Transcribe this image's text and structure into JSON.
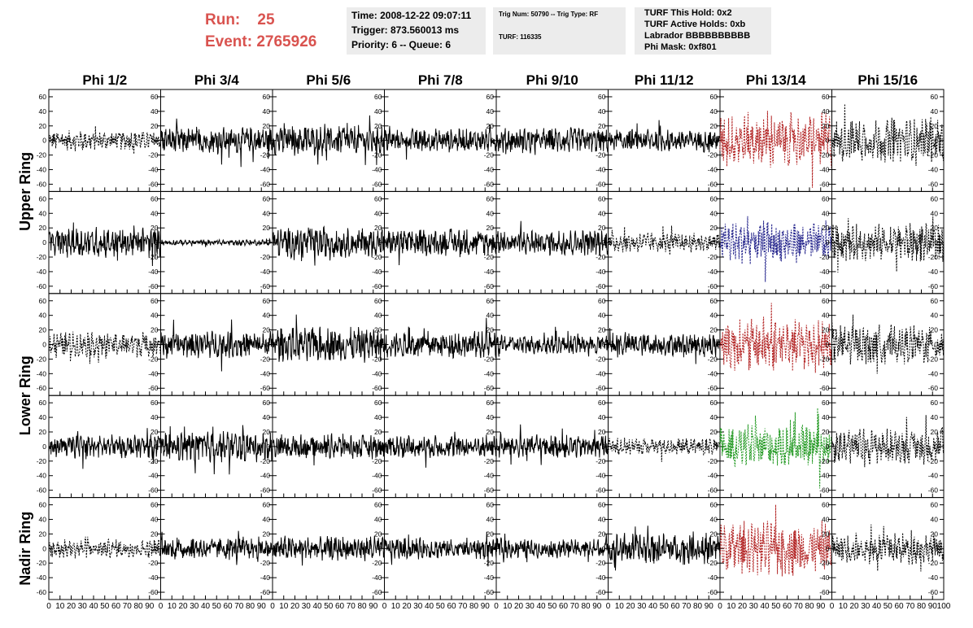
{
  "header": {
    "run_label": "Run:",
    "run_value": "25",
    "event_label": "Event:",
    "event_value": "2765926",
    "time": "Time: 2008-12-22 09:07:11",
    "trigger": "Trigger: 873.560013 ms",
    "priority": "Priority: 6 -- Queue: 6",
    "trig_num": "Trig Num: 50790 -- Trig Type: RF",
    "turf": "TURF: 116335",
    "turf_this_hold": "TURF This Hold: 0x2",
    "turf_active_holds": "TURF Active Holds: 0xb",
    "labrador": "Labrador BBBBBBBBBB",
    "phi_mask": "Phi Mask: 0xf801"
  },
  "chart_data": {
    "type": "line",
    "columns": [
      "Phi 1/2",
      "Phi 3/4",
      "Phi 5/6",
      "Phi 7/8",
      "Phi 9/10",
      "Phi 11/12",
      "Phi 13/14",
      "Phi 15/16"
    ],
    "ring_labels": [
      "Upper Ring",
      "Lower Ring",
      "Nadir Ring"
    ],
    "rows": 5,
    "xlim": [
      0,
      100
    ],
    "ylim": [
      -70,
      70
    ],
    "xticks": [
      0,
      10,
      20,
      30,
      40,
      50,
      60,
      70,
      80,
      90,
      100
    ],
    "yticks": [
      -60,
      -40,
      -20,
      0,
      20,
      40,
      60
    ],
    "x_tick_label_text": [
      "0",
      "10",
      "20",
      "30",
      "40",
      "50",
      "60",
      "70",
      "80",
      "90",
      "100"
    ],
    "panel_styles": [
      [
        "dashed",
        "solid",
        "solid",
        "solid",
        "solid",
        "solid",
        "dashed",
        "dashed"
      ],
      [
        "solid",
        "solid",
        "solid",
        "solid",
        "solid",
        "dashed",
        "dashed",
        "dashed"
      ],
      [
        "dashed",
        "solid",
        "solid",
        "solid",
        "solid",
        "solid",
        "dashed",
        "dashed"
      ],
      [
        "solid",
        "solid",
        "solid",
        "solid",
        "solid",
        "dashed",
        "dashed",
        "dashed"
      ],
      [
        "dashed",
        "solid",
        "solid",
        "solid",
        "solid",
        "solid",
        "dashed",
        "dashed"
      ]
    ],
    "panel_colors": [
      [
        "#000000",
        "#000000",
        "#000000",
        "#000000",
        "#000000",
        "#000000",
        "#b22222",
        "#000000"
      ],
      [
        "#000000",
        "#000000",
        "#000000",
        "#000000",
        "#000000",
        "#000000",
        "#22228b",
        "#000000"
      ],
      [
        "#000000",
        "#000000",
        "#000000",
        "#000000",
        "#000000",
        "#000000",
        "#b22222",
        "#000000"
      ],
      [
        "#000000",
        "#000000",
        "#000000",
        "#000000",
        "#000000",
        "#000000",
        "#229922",
        "#000000"
      ],
      [
        "#000000",
        "#000000",
        "#000000",
        "#000000",
        "#000000",
        "#000000",
        "#b22222",
        "#000000"
      ]
    ],
    "panel_amplitudes": [
      [
        10,
        14,
        16,
        12,
        13,
        12,
        28,
        22
      ],
      [
        16,
        3,
        16,
        14,
        14,
        10,
        22,
        20
      ],
      [
        13,
        14,
        18,
        14,
        10,
        12,
        28,
        20
      ],
      [
        12,
        16,
        13,
        12,
        12,
        9,
        22,
        18
      ],
      [
        10,
        12,
        13,
        11,
        10,
        16,
        28,
        16
      ]
    ]
  }
}
